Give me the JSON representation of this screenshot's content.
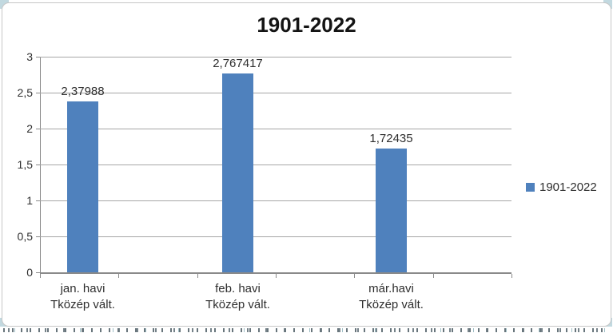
{
  "chart_data": {
    "type": "bar",
    "title": "1901-2022",
    "categories": [
      {
        "line1": "jan. havi",
        "line2": "Tközép vált."
      },
      {
        "line1": "feb. havi",
        "line2": "Tközép vált."
      },
      {
        "line1": "már.havi",
        "line2": "Tközép vált."
      }
    ],
    "series": [
      {
        "name": "1901-2022",
        "values": [
          2.37988,
          2.767417,
          1.72435
        ]
      }
    ],
    "value_labels": [
      "2,37988",
      "2,767417",
      "1,72435"
    ],
    "y_ticks": [
      "3",
      "2,5",
      "2",
      "1,5",
      "1",
      "0,5",
      "0"
    ],
    "ylim": [
      0,
      3
    ],
    "grid": true,
    "legend_position": "right",
    "xlabel": "",
    "ylabel": "",
    "bar_color": "#4f81bd"
  },
  "legend": {
    "label": "1901-2022",
    "marker_color": "#4f81bd"
  },
  "colors": {
    "bar": "#4f81bd",
    "gridline": "#a6a6a6",
    "axis": "#8a8a8a",
    "chart_border": "#c6c6c6",
    "spreadsheet_corner": "#c2d9e0"
  }
}
